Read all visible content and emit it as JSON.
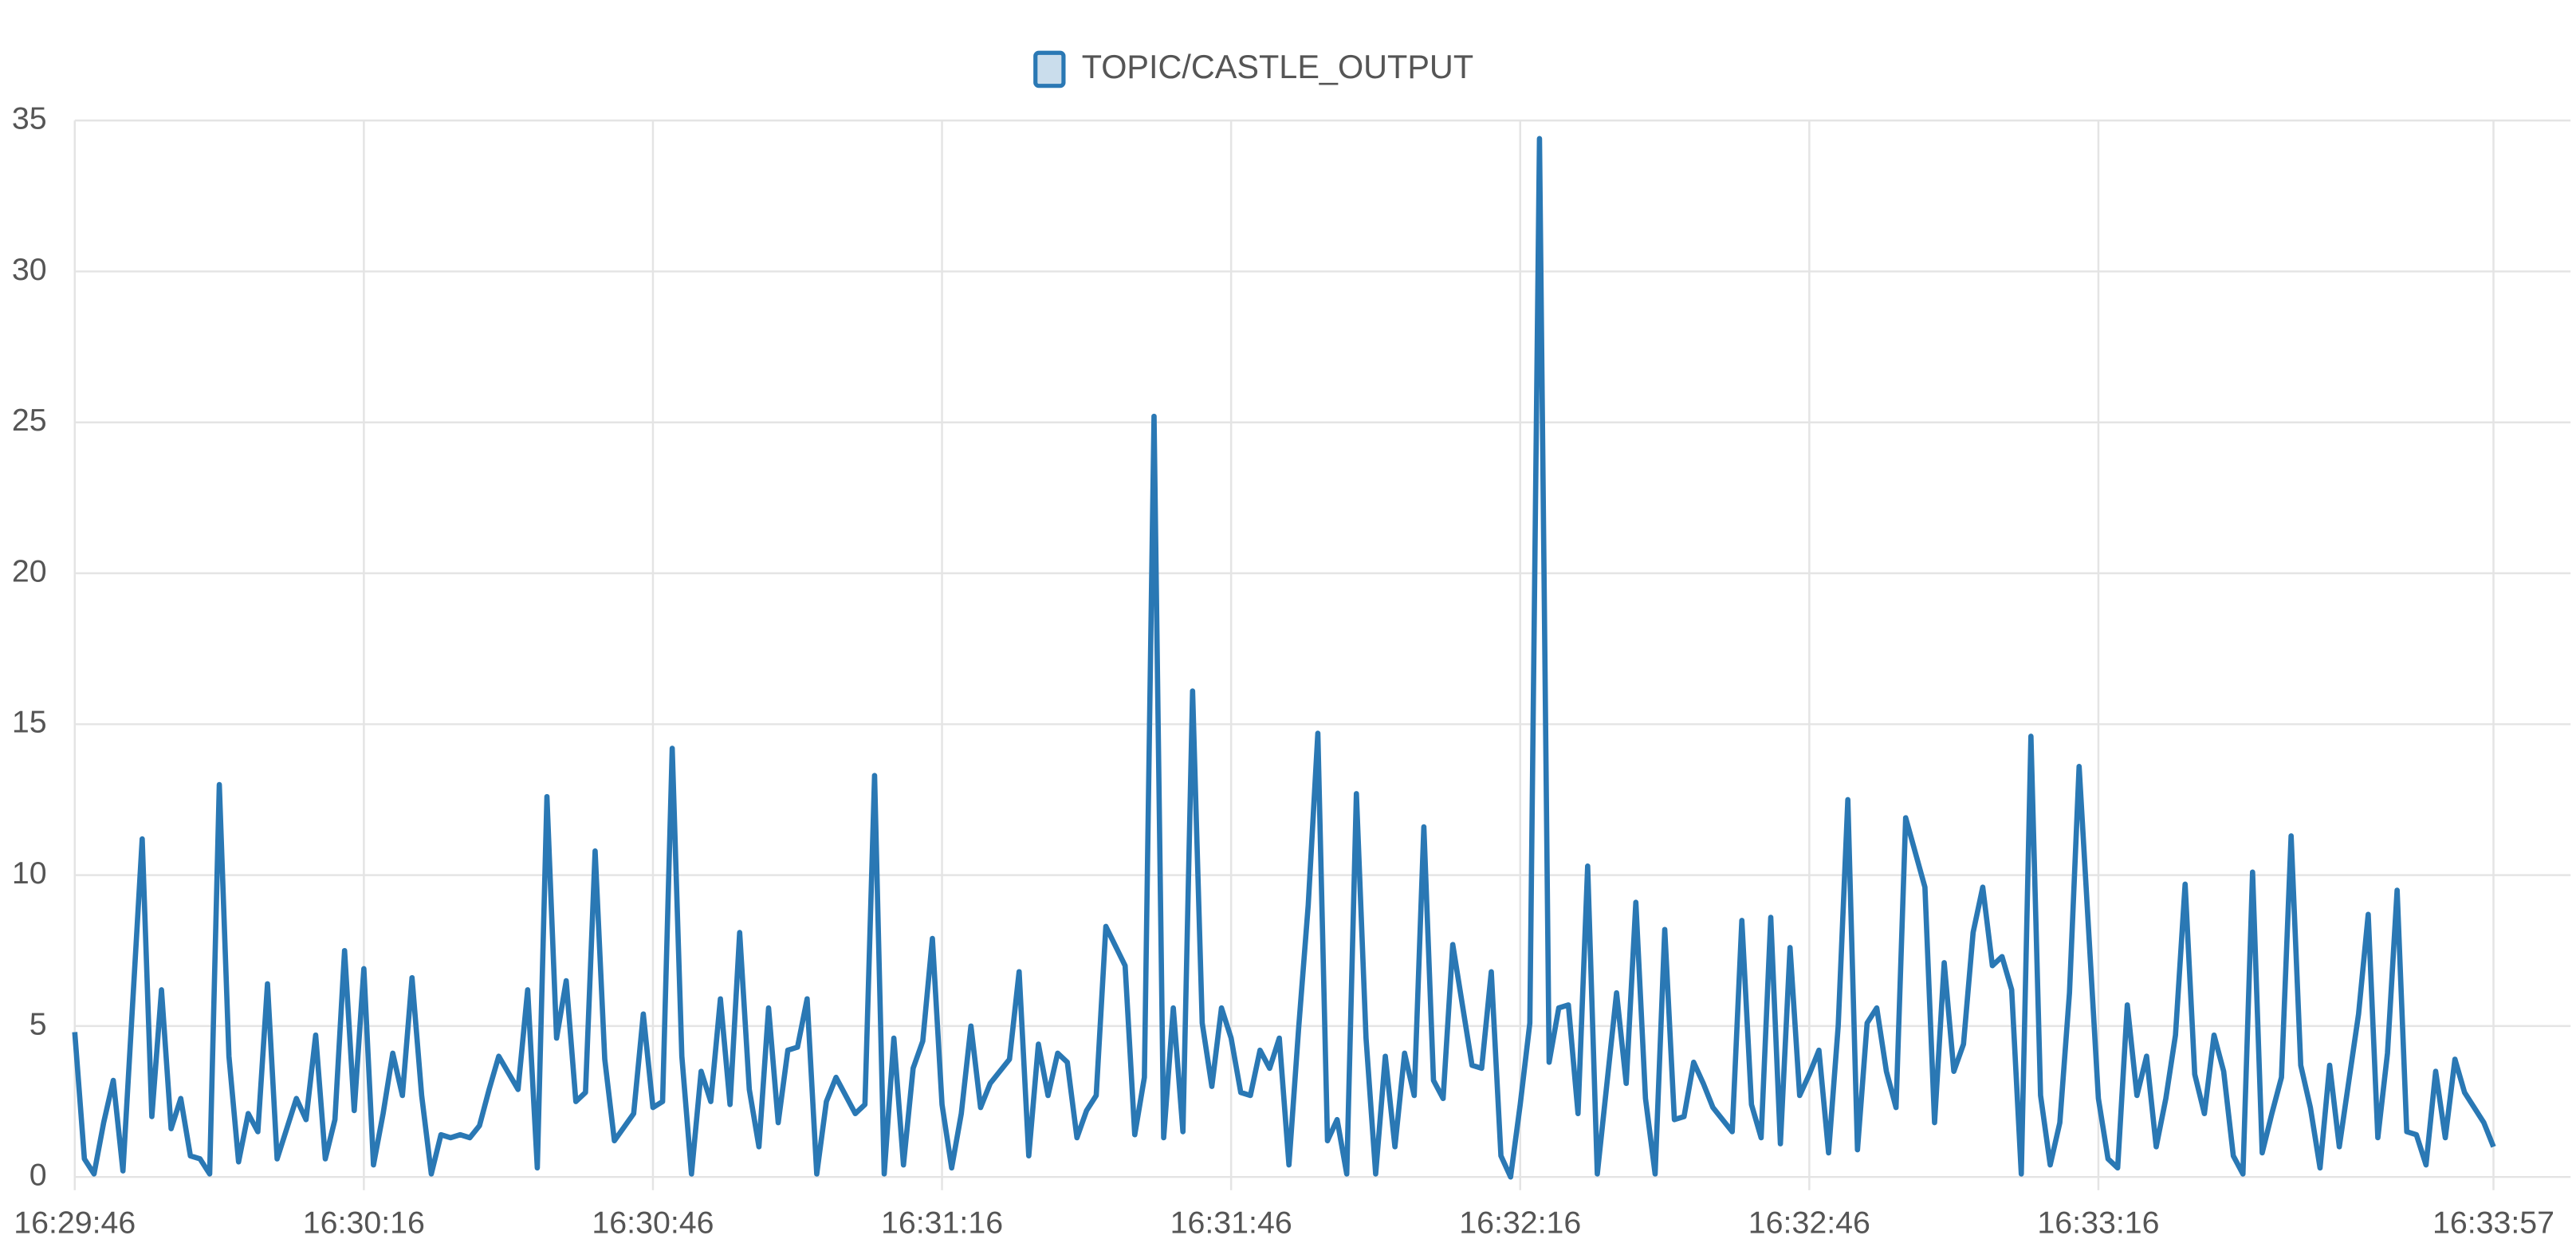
{
  "chart_data": {
    "type": "line",
    "legend": "top",
    "grid": true,
    "xlim": [
      "16:29:46",
      "16:34:05"
    ],
    "xticks": [
      "16:29:46",
      "16:30:16",
      "16:30:46",
      "16:31:16",
      "16:31:46",
      "16:32:16",
      "16:32:46",
      "16:33:16",
      "16:33:57"
    ],
    "ylim": [
      0,
      35
    ],
    "yticks": [
      0,
      5,
      10,
      15,
      20,
      25,
      30,
      35
    ],
    "x": [
      "16:29:46",
      "16:29:47",
      "16:29:48",
      "16:29:49",
      "16:29:50",
      "16:29:51",
      "16:29:53",
      "16:29:54",
      "16:29:55",
      "16:29:56",
      "16:29:57",
      "16:29:58",
      "16:29:59",
      "16:30:00",
      "16:30:01",
      "16:30:02",
      "16:30:03",
      "16:30:04",
      "16:30:05",
      "16:30:06",
      "16:30:07",
      "16:30:09",
      "16:30:10",
      "16:30:11",
      "16:30:12",
      "16:30:13",
      "16:30:14",
      "16:30:15",
      "16:30:16",
      "16:30:17",
      "16:30:18",
      "16:30:19",
      "16:30:20",
      "16:30:21",
      "16:30:22",
      "16:30:23",
      "16:30:24",
      "16:30:25",
      "16:30:26",
      "16:30:27",
      "16:30:28",
      "16:30:29",
      "16:30:30",
      "16:30:32",
      "16:30:33",
      "16:30:34",
      "16:30:35",
      "16:30:36",
      "16:30:37",
      "16:30:38",
      "16:30:39",
      "16:30:40",
      "16:30:41",
      "16:30:42",
      "16:30:44",
      "16:30:45",
      "16:30:46",
      "16:30:47",
      "16:30:48",
      "16:30:49",
      "16:30:50",
      "16:30:51",
      "16:30:52",
      "16:30:53",
      "16:30:54",
      "16:30:55",
      "16:30:56",
      "16:30:57",
      "16:30:58",
      "16:30:59",
      "16:31:00",
      "16:31:01",
      "16:31:02",
      "16:31:03",
      "16:31:04",
      "16:31:05",
      "16:31:07",
      "16:31:08",
      "16:31:09",
      "16:31:10",
      "16:31:11",
      "16:31:12",
      "16:31:13",
      "16:31:14",
      "16:31:15",
      "16:31:16",
      "16:31:17",
      "16:31:18",
      "16:31:19",
      "16:31:20",
      "16:31:21",
      "16:31:23",
      "16:31:24",
      "16:31:25",
      "16:31:26",
      "16:31:27",
      "16:31:28",
      "16:31:29",
      "16:31:30",
      "16:31:31",
      "16:31:32",
      "16:31:33",
      "16:31:35",
      "16:31:36",
      "16:31:37",
      "16:31:38",
      "16:31:39",
      "16:31:40",
      "16:31:41",
      "16:31:42",
      "16:31:43",
      "16:31:44",
      "16:31:45",
      "16:31:46",
      "16:31:47",
      "16:31:48",
      "16:31:49",
      "16:31:50",
      "16:31:51",
      "16:31:52",
      "16:31:53",
      "16:31:54",
      "16:31:55",
      "16:31:56",
      "16:31:57",
      "16:31:58",
      "16:31:59",
      "16:32:00",
      "16:32:01",
      "16:32:02",
      "16:32:03",
      "16:32:04",
      "16:32:05",
      "16:32:06",
      "16:32:07",
      "16:32:08",
      "16:32:09",
      "16:32:11",
      "16:32:12",
      "16:32:13",
      "16:32:14",
      "16:32:15",
      "16:32:16",
      "16:32:17",
      "16:32:18",
      "16:32:19",
      "16:32:20",
      "16:32:21",
      "16:32:22",
      "16:32:23",
      "16:32:24",
      "16:32:25",
      "16:32:26",
      "16:32:27",
      "16:32:28",
      "16:32:29",
      "16:32:30",
      "16:32:31",
      "16:32:32",
      "16:32:33",
      "16:32:34",
      "16:32:35",
      "16:32:36",
      "16:32:38",
      "16:32:39",
      "16:32:40",
      "16:32:41",
      "16:32:42",
      "16:32:43",
      "16:32:44",
      "16:32:45",
      "16:32:46",
      "16:32:47",
      "16:32:48",
      "16:32:49",
      "16:32:50",
      "16:32:51",
      "16:32:52",
      "16:32:53",
      "16:32:54",
      "16:32:55",
      "16:32:56",
      "16:32:58",
      "16:32:59",
      "16:33:00",
      "16:33:01",
      "16:33:02",
      "16:33:03",
      "16:33:04",
      "16:33:05",
      "16:33:06",
      "16:33:07",
      "16:33:08",
      "16:33:09",
      "16:33:10",
      "16:33:11",
      "16:33:12",
      "16:33:13",
      "16:33:14",
      "16:33:16",
      "16:33:17",
      "16:33:18",
      "16:33:19",
      "16:33:20",
      "16:33:21",
      "16:33:22",
      "16:33:23",
      "16:33:24",
      "16:33:25",
      "16:33:26",
      "16:33:27",
      "16:33:28",
      "16:33:29",
      "16:33:30",
      "16:33:31",
      "16:33:32",
      "16:33:33",
      "16:33:34",
      "16:33:35",
      "16:33:36",
      "16:33:37",
      "16:33:38",
      "16:33:39",
      "16:33:40",
      "16:33:41",
      "16:33:43",
      "16:33:44",
      "16:33:45",
      "16:33:46",
      "16:33:47",
      "16:33:48",
      "16:33:49",
      "16:33:50",
      "16:33:51",
      "16:33:52",
      "16:33:53",
      "16:33:54",
      "16:33:56",
      "16:33:57"
    ],
    "series": [
      {
        "name": "TOPIC/CASTLE_OUTPUT",
        "color": "#2a78b4",
        "values": [
          4.8,
          0.6,
          0.1,
          1.8,
          3.2,
          0.2,
          11.2,
          2,
          6.2,
          1.6,
          2.6,
          0.7,
          0.6,
          0.1,
          13,
          4,
          0.5,
          2.1,
          1.5,
          6.4,
          0.6,
          2.6,
          1.9,
          4.7,
          0.6,
          1.9,
          7.5,
          2.2,
          6.9,
          0.4,
          2.1,
          4.1,
          2.7,
          6.6,
          2.7,
          0.1,
          1.4,
          1.3,
          1.4,
          1.3,
          1.7,
          2.9,
          4,
          2.9,
          6.2,
          0.3,
          12.6,
          4.6,
          6.5,
          2.5,
          2.8,
          10.8,
          3.9,
          1.2,
          2.1,
          5.4,
          2.3,
          2.5,
          14.2,
          4,
          0.1,
          3.5,
          2.5,
          5.9,
          2.4,
          8.1,
          2.9,
          1,
          5.6,
          1.8,
          4.2,
          4.3,
          5.9,
          0.1,
          2.5,
          3.3,
          2.1,
          2.4,
          13.3,
          0.1,
          4.6,
          0.4,
          3.6,
          4.5,
          7.9,
          2.4,
          0.3,
          2.1,
          5,
          2.3,
          3.1,
          3.9,
          6.8,
          0.7,
          4.4,
          2.7,
          4.1,
          3.8,
          1.3,
          2.2,
          2.7,
          8.3,
          7,
          1.4,
          3.3,
          25.2,
          1.3,
          5.6,
          1.5,
          16.1,
          5.1,
          3,
          5.6,
          4.6,
          2.8,
          2.7,
          4.2,
          3.6,
          4.6,
          0.4,
          4.9,
          9,
          14.7,
          1.2,
          1.9,
          0.1,
          12.7,
          4.6,
          0.1,
          4,
          1,
          4.1,
          2.7,
          11.6,
          3.2,
          2.6,
          7.7,
          3.7,
          3.6,
          6.8,
          0.7,
          0,
          2.4,
          5.1,
          34.4,
          3.8,
          5.6,
          5.7,
          2.1,
          10.3,
          0.1,
          3.1,
          6.1,
          3.1,
          9.1,
          2.6,
          0.1,
          8.2,
          1.9,
          2,
          3.8,
          3.1,
          2.3,
          1.5,
          8.5,
          2.4,
          1.3,
          8.6,
          1.1,
          7.6,
          2.7,
          3.4,
          4.2,
          0.8,
          5,
          12.5,
          0.9,
          5.1,
          5.6,
          3.5,
          2.3,
          11.9,
          9.6,
          1.8,
          7.1,
          3.5,
          4.4,
          8.1,
          9.6,
          7,
          7.3,
          6.2,
          0.1,
          14.6,
          2.7,
          0.4,
          1.8,
          6.1,
          13.6,
          2.6,
          0.6,
          0.3,
          5.7,
          2.7,
          4,
          1,
          2.6,
          4.7,
          9.7,
          3.4,
          2.1,
          4.7,
          3.5,
          0.7,
          0.1,
          10.1,
          0.8,
          2.1,
          3.3,
          11.3,
          3.7,
          2.3,
          0.3,
          3.7,
          1,
          5.4,
          8.7,
          1.3,
          4.1,
          9.5,
          1.5,
          1.4,
          0.4,
          3.5,
          1.3,
          3.9,
          2.8,
          1.8,
          1
        ]
      }
    ]
  }
}
